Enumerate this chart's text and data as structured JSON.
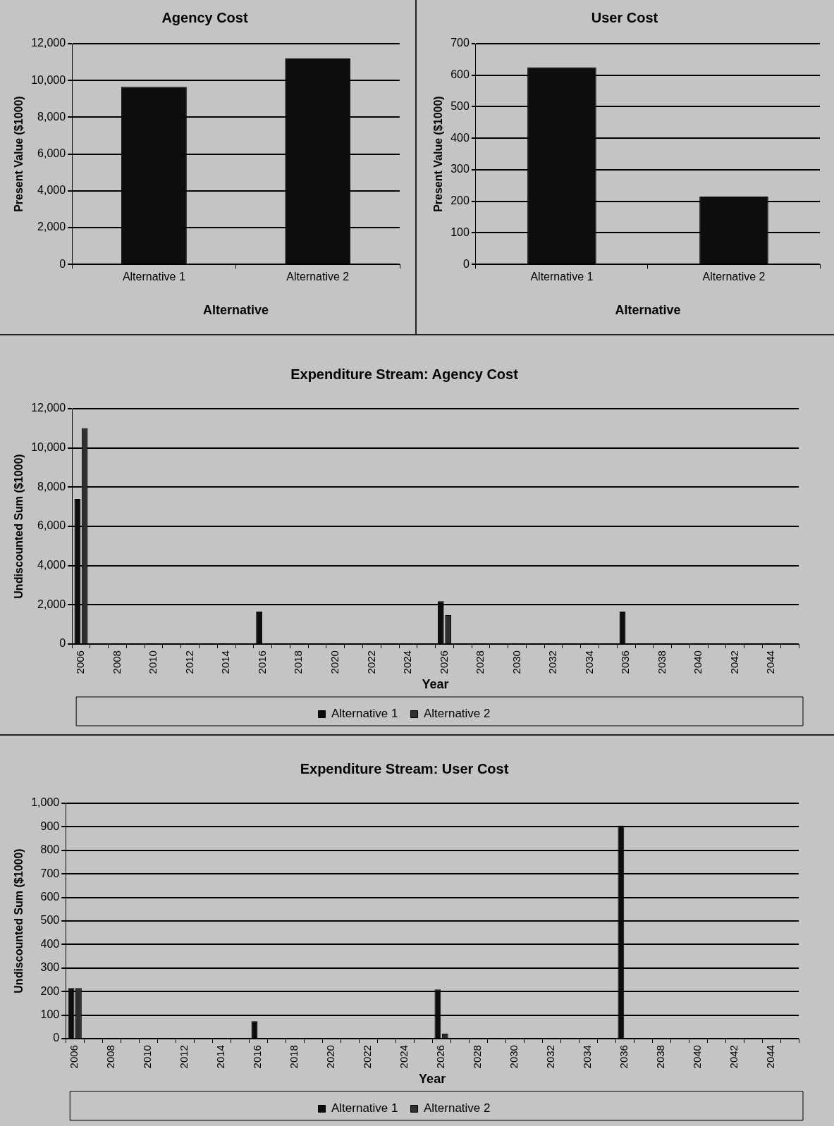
{
  "chart_data": [
    {
      "type": "bar",
      "title": "Agency Cost",
      "xlabel": "Alternative",
      "ylabel": "Present Value ($1000)",
      "categories": [
        "Alternative 1",
        "Alternative 2"
      ],
      "series": [
        {
          "color": "#0d0d0d",
          "values": [
            9650,
            11200
          ]
        }
      ],
      "ylim": [
        0,
        12000
      ],
      "yticks": [
        0,
        {
          "value": 2000,
          "label": "2,000"
        },
        {
          "value": 4000,
          "label": "4,000"
        },
        {
          "value": 6000,
          "label": "6,000"
        },
        {
          "value": 8000,
          "label": "8,000"
        },
        {
          "value": 10000,
          "label": "10,000"
        },
        {
          "value": 12000,
          "label": "12,000"
        }
      ],
      "grid": "y",
      "legend": false
    },
    {
      "type": "bar",
      "title": "User Cost",
      "xlabel": "Alternative",
      "ylabel": "Present Value ($1000)",
      "categories": [
        "Alternative 1",
        "Alternative 2"
      ],
      "series": [
        {
          "color": "#0d0d0d",
          "values": [
            625,
            215
          ]
        }
      ],
      "ylim": [
        0,
        700
      ],
      "yticks": [
        0,
        100,
        200,
        300,
        400,
        500,
        600,
        700
      ],
      "grid": "y",
      "legend": false
    },
    {
      "type": "bar",
      "title": "Expenditure Stream: Agency Cost",
      "xlabel": "Year",
      "ylabel": "Undiscounted Sum ($1000)",
      "categories": [
        "2006",
        null,
        "2008",
        null,
        "2010",
        null,
        "2012",
        null,
        "2014",
        null,
        "2016",
        null,
        "2018",
        null,
        "2020",
        null,
        "2022",
        null,
        "2024",
        null,
        "2026",
        null,
        "2028",
        null,
        "2030",
        null,
        "2032",
        null,
        "2034",
        null,
        "2036",
        null,
        "2038",
        null,
        "2040",
        null,
        "2042",
        null,
        "2044",
        null
      ],
      "series": [
        {
          "name": "Alternative 1",
          "color": "#0d0d0d",
          "values": [
            7400,
            0,
            0,
            0,
            50,
            0,
            0,
            0,
            50,
            0,
            1650,
            0,
            0,
            0,
            50,
            0,
            0,
            0,
            50,
            0,
            2180,
            0,
            0,
            0,
            50,
            0,
            0,
            0,
            50,
            0,
            1650,
            0,
            0,
            0,
            50,
            0,
            0,
            0,
            50,
            0
          ]
        },
        {
          "name": "Alternative 2",
          "color": "#2e2e2e",
          "values": [
            11000,
            0,
            0,
            0,
            0,
            0,
            0,
            0,
            0,
            0,
            0,
            0,
            0,
            0,
            0,
            0,
            0,
            0,
            0,
            0,
            1470,
            0,
            0,
            0,
            0,
            0,
            0,
            0,
            0,
            0,
            0,
            0,
            0,
            0,
            0,
            0,
            0,
            0,
            0,
            0
          ]
        }
      ],
      "ylim": [
        0,
        12000
      ],
      "yticks": [
        0,
        {
          "value": 2000,
          "label": "2,000"
        },
        {
          "value": 4000,
          "label": "4,000"
        },
        {
          "value": 6000,
          "label": "6,000"
        },
        {
          "value": 8000,
          "label": "8,000"
        },
        {
          "value": 10000,
          "label": "10,000"
        },
        {
          "value": 12000,
          "label": "12,000"
        }
      ],
      "grid": "y",
      "legend": "bottom"
    },
    {
      "type": "bar",
      "title": "Expenditure Stream: User Cost",
      "xlabel": "Year",
      "ylabel": "Undiscounted Sum ($1000)",
      "categories": [
        "2006",
        null,
        "2008",
        null,
        "2010",
        null,
        "2012",
        null,
        "2014",
        null,
        "2016",
        null,
        "2018",
        null,
        "2020",
        null,
        "2022",
        null,
        "2024",
        null,
        "2026",
        null,
        "2028",
        null,
        "2030",
        null,
        "2032",
        null,
        "2034",
        null,
        "2036",
        null,
        "2038",
        null,
        "2040",
        null,
        "2042",
        null,
        "2044",
        null
      ],
      "series": [
        {
          "name": "Alternative 1",
          "color": "#0d0d0d",
          "values": [
            215,
            0,
            0,
            0,
            0,
            0,
            0,
            0,
            0,
            0,
            74,
            0,
            0,
            0,
            0,
            0,
            0,
            0,
            0,
            0,
            209,
            0,
            0,
            0,
            0,
            0,
            0,
            0,
            0,
            0,
            905,
            0,
            0,
            0,
            0,
            0,
            0,
            0,
            0,
            0
          ]
        },
        {
          "name": "Alternative 2",
          "color": "#2e2e2e",
          "values": [
            215,
            0,
            0,
            0,
            0,
            0,
            0,
            0,
            0,
            0,
            0,
            0,
            0,
            0,
            0,
            0,
            0,
            0,
            0,
            0,
            21,
            0,
            0,
            0,
            0,
            0,
            0,
            0,
            0,
            0,
            0,
            0,
            0,
            0,
            0,
            0,
            0,
            0,
            0,
            0
          ]
        }
      ],
      "ylim": [
        0,
        1000
      ],
      "yticks": [
        0,
        100,
        200,
        300,
        400,
        500,
        600,
        700,
        800,
        900,
        {
          "value": 1000,
          "label": "1,000"
        }
      ],
      "grid": "y",
      "legend": "bottom"
    }
  ]
}
